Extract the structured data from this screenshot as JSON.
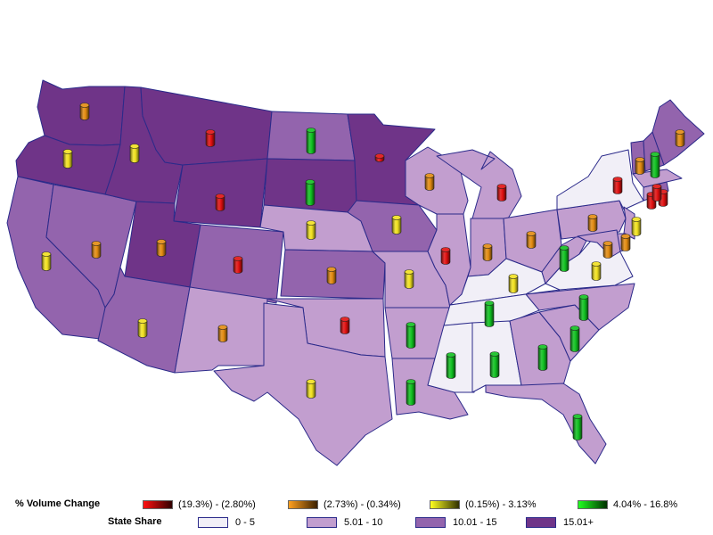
{
  "colors": {
    "share_0_5": "#f1eff7",
    "share_5_10": "#c29ecf",
    "share_10_15": "#9364ad",
    "share_15_plus": "#6f3488",
    "vol_red": "#e01010",
    "vol_orange": "#e28a10",
    "vol_yellow": "#f0e020",
    "vol_green": "#10c020"
  },
  "legend": {
    "volume_title": "% Volume Change",
    "volume_items": [
      {
        "label": "(19.3%) - (2.80%)",
        "from": "#ff1010",
        "to": "#300000"
      },
      {
        "label": "(2.73%) - (0.34%)",
        "from": "#ffa020",
        "to": "#3a2000"
      },
      {
        "label": "(0.15%) - 3.13%",
        "from": "#ffff20",
        "to": "#303000"
      },
      {
        "label": "4.04% - 16.8%",
        "from": "#20ff20",
        "to": "#003000"
      }
    ],
    "share_title": "State Share",
    "share_items": [
      {
        "label": "0 - 5",
        "color": "#f1eff7"
      },
      {
        "label": "5.01 - 10",
        "color": "#c29ecf"
      },
      {
        "label": "10.01 - 15",
        "color": "#9364ad"
      },
      {
        "label": "15.01+",
        "color": "#6f3488"
      }
    ]
  },
  "states": [
    {
      "id": "WA",
      "share": "15.01+",
      "volume": "(2.73%) - (0.34%)"
    },
    {
      "id": "OR",
      "share": "15.01+",
      "volume": "(0.15%) - 3.13%"
    },
    {
      "id": "CA",
      "share": "10.01 - 15",
      "volume": "(0.15%) - 3.13%"
    },
    {
      "id": "NV",
      "share": "10.01 - 15",
      "volume": "(2.73%) - (0.34%)"
    },
    {
      "id": "ID",
      "share": "15.01+",
      "volume": "(0.15%) - 3.13%"
    },
    {
      "id": "MT",
      "share": "15.01+",
      "volume": "(19.3%) - (2.80%)"
    },
    {
      "id": "WY",
      "share": "15.01+",
      "volume": "(19.3%) - (2.80%)"
    },
    {
      "id": "UT",
      "share": "15.01+",
      "volume": "(2.73%) - (0.34%)"
    },
    {
      "id": "AZ",
      "share": "10.01 - 15",
      "volume": "(0.15%) - 3.13%"
    },
    {
      "id": "CO",
      "share": "10.01 - 15",
      "volume": "(19.3%) - (2.80%)"
    },
    {
      "id": "NM",
      "share": "5.01 - 10",
      "volume": "(2.73%) - (0.34%)"
    },
    {
      "id": "ND",
      "share": "10.01 - 15",
      "volume": "4.04% - 16.8%"
    },
    {
      "id": "SD",
      "share": "15.01+",
      "volume": "4.04% - 16.8%"
    },
    {
      "id": "NE",
      "share": "5.01 - 10",
      "volume": "(0.15%) - 3.13%"
    },
    {
      "id": "KS",
      "share": "10.01 - 15",
      "volume": "(2.73%) - (0.34%)"
    },
    {
      "id": "OK",
      "share": "5.01 - 10",
      "volume": "(19.3%) - (2.80%)"
    },
    {
      "id": "TX",
      "share": "5.01 - 10",
      "volume": "(0.15%) - 3.13%"
    },
    {
      "id": "MN",
      "share": "15.01+",
      "volume": "(19.3%) - (2.80%)"
    },
    {
      "id": "IA",
      "share": "10.01 - 15",
      "volume": "(0.15%) - 3.13%"
    },
    {
      "id": "MO",
      "share": "5.01 - 10",
      "volume": "(0.15%) - 3.13%"
    },
    {
      "id": "AR",
      "share": "5.01 - 10",
      "volume": "4.04% - 16.8%"
    },
    {
      "id": "LA",
      "share": "5.01 - 10",
      "volume": "4.04% - 16.8%"
    },
    {
      "id": "WI",
      "share": "5.01 - 10",
      "volume": "(2.73%) - (0.34%)"
    },
    {
      "id": "IL",
      "share": "5.01 - 10",
      "volume": "(19.3%) - (2.80%)"
    },
    {
      "id": "MI",
      "share": "5.01 - 10",
      "volume": "(19.3%) - (2.80%)"
    },
    {
      "id": "IN",
      "share": "5.01 - 10",
      "volume": "(2.73%) - (0.34%)"
    },
    {
      "id": "OH",
      "share": "5.01 - 10",
      "volume": "(2.73%) - (0.34%)"
    },
    {
      "id": "KY",
      "share": "0 - 5",
      "volume": "(0.15%) - 3.13%"
    },
    {
      "id": "TN",
      "share": "0 - 5",
      "volume": "4.04% - 16.8%"
    },
    {
      "id": "MS",
      "share": "0 - 5",
      "volume": "4.04% - 16.8%"
    },
    {
      "id": "AL",
      "share": "0 - 5",
      "volume": "4.04% - 16.8%"
    },
    {
      "id": "GA",
      "share": "5.01 - 10",
      "volume": "4.04% - 16.8%"
    },
    {
      "id": "FL",
      "share": "5.01 - 10",
      "volume": "4.04% - 16.8%"
    },
    {
      "id": "SC",
      "share": "5.01 - 10",
      "volume": "4.04% - 16.8%"
    },
    {
      "id": "NC",
      "share": "5.01 - 10",
      "volume": "4.04% - 16.8%"
    },
    {
      "id": "VA",
      "share": "0 - 5",
      "volume": "(0.15%) - 3.13%"
    },
    {
      "id": "WV",
      "share": "5.01 - 10",
      "volume": "4.04% - 16.8%"
    },
    {
      "id": "PA",
      "share": "5.01 - 10",
      "volume": "(2.73%) - (0.34%)"
    },
    {
      "id": "NY",
      "share": "0 - 5",
      "volume": "(19.3%) - (2.80%)"
    },
    {
      "id": "MD",
      "share": "5.01 - 10",
      "volume": "(2.73%) - (0.34%)"
    },
    {
      "id": "DE",
      "share": "5.01 - 10",
      "volume": "(2.73%) - (0.34%)"
    },
    {
      "id": "NJ",
      "share": "5.01 - 10",
      "volume": "(0.15%) - 3.13%"
    },
    {
      "id": "CT",
      "share": "5.01 - 10",
      "volume": "(19.3%) - (2.80%)"
    },
    {
      "id": "RI",
      "share": "10.01 - 15",
      "volume": "(19.3%) - (2.80%)"
    },
    {
      "id": "MA",
      "share": "5.01 - 10",
      "volume": "(19.3%) - (2.80%)"
    },
    {
      "id": "VT",
      "share": "10.01 - 15",
      "volume": "(2.73%) - (0.34%)"
    },
    {
      "id": "NH",
      "share": "10.01 - 15",
      "volume": "4.04% - 16.8%"
    },
    {
      "id": "ME",
      "share": "10.01 - 15",
      "volume": "(2.73%) - (0.34%)"
    }
  ]
}
